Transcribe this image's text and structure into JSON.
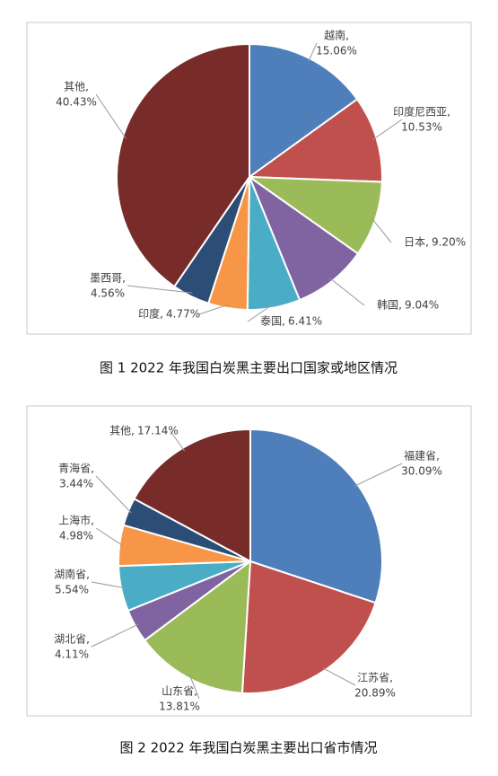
{
  "chart_data": [
    {
      "type": "pie",
      "caption": "图 1  2022 年我国白炭黑主要出口国家或地区情况",
      "categories": [
        "越南,",
        "印度尼西亚,",
        "日本,",
        "韩国,",
        "泰国,",
        "印度,",
        "墨西哥,",
        "其他,"
      ],
      "values": [
        15.06,
        10.53,
        9.2,
        9.04,
        6.41,
        4.77,
        4.56,
        40.43
      ],
      "value_labels": [
        "15.06%",
        "10.53%",
        "9.20%",
        "9.04%",
        "6.41%",
        "4.77%",
        "4.56%",
        "40.43%"
      ],
      "colors": [
        "#4f7fba",
        "#c0504d",
        "#9bbb59",
        "#8064a2",
        "#4bacc6",
        "#f79646",
        "#2c4d75",
        "#772c2a"
      ]
    },
    {
      "type": "pie",
      "caption": "图 2  2022 年我国白炭黑主要出口省市情况",
      "categories": [
        "福建省,",
        "江苏省,",
        "山东省,",
        "湖北省,",
        "湖南省,",
        "上海市,",
        "青海省,",
        "其他,"
      ],
      "values": [
        30.09,
        20.89,
        13.81,
        4.11,
        5.54,
        4.98,
        3.44,
        17.14
      ],
      "value_labels": [
        "30.09%",
        "20.89%",
        "13.81%",
        "4.11%",
        "5.54%",
        "4.98%",
        "3.44%",
        "17.14%"
      ],
      "colors": [
        "#4f7fba",
        "#c0504d",
        "#9bbb59",
        "#8064a2",
        "#4bacc6",
        "#f79646",
        "#2c4d75",
        "#772c2a"
      ]
    }
  ]
}
